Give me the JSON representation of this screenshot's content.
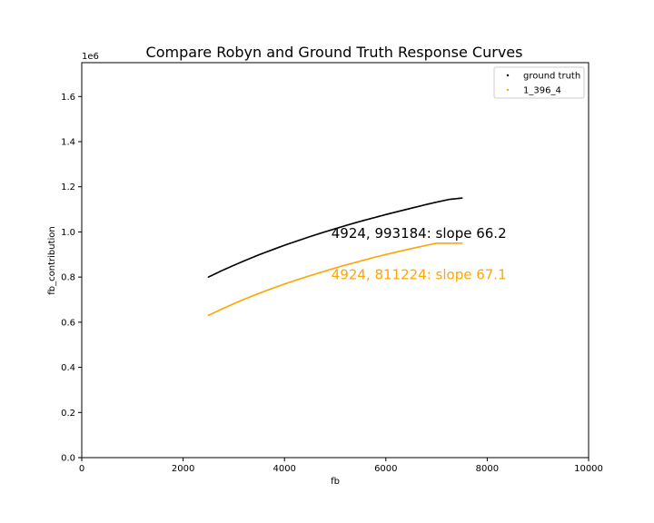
{
  "chart_data": {
    "type": "scatter",
    "title": "Compare Robyn and Ground Truth Response Curves",
    "xlabel": "fb",
    "ylabel": "fb_contribution",
    "y_offset_label": "1e6",
    "xlim": [
      0,
      10000
    ],
    "ylim": [
      0,
      1750000
    ],
    "x_ticks": [
      0,
      2000,
      4000,
      6000,
      8000,
      10000
    ],
    "x_tick_labels": [
      "0",
      "2000",
      "4000",
      "6000",
      "8000",
      "10000"
    ],
    "y_ticks": [
      0,
      200000,
      400000,
      600000,
      800000,
      1000000,
      1200000,
      1400000,
      1600000
    ],
    "y_tick_labels": [
      "0.0",
      "0.2",
      "0.4",
      "0.6",
      "0.8",
      "1.0",
      "1.2",
      "1.4",
      "1.6"
    ],
    "grid": false,
    "legend_position": "top-right",
    "series": [
      {
        "name": "ground truth",
        "color": "#000000",
        "x": [
          2500,
          2750,
          3000,
          3250,
          3500,
          3750,
          4000,
          4250,
          4500,
          4750,
          5000,
          5250,
          5500,
          5750,
          6000,
          6250,
          6500,
          6750,
          7000,
          7250,
          7500
        ],
        "y": [
          800000,
          827000,
          852000,
          876000,
          899000,
          920000,
          941000,
          960000,
          979000,
          997000,
          1014000,
          1031000,
          1047000,
          1062000,
          1077000,
          1091000,
          1105000,
          1119000,
          1132000,
          1144000,
          1150000
        ]
      },
      {
        "name": "1_396_4",
        "color": "#ffa500",
        "x": [
          2500,
          2750,
          3000,
          3250,
          3500,
          3750,
          4000,
          4250,
          4500,
          4750,
          5000,
          5250,
          5500,
          5750,
          6000,
          6250,
          6500,
          6750,
          7000,
          7250,
          7500
        ],
        "y": [
          630000,
          657000,
          682000,
          706000,
          728000,
          749000,
          769000,
          788000,
          806000,
          823000,
          840000,
          856000,
          871000,
          886000,
          900000,
          913000,
          926000,
          938000,
          950000,
          950000,
          950000
        ]
      }
    ],
    "annotations": [
      {
        "text": "4924, 993184: slope 66.2",
        "x": 4924,
        "y": 993184,
        "color": "#000000"
      },
      {
        "text": "4924, 811224: slope 67.1",
        "x": 4924,
        "y": 811224,
        "color": "#ffa500"
      }
    ]
  }
}
